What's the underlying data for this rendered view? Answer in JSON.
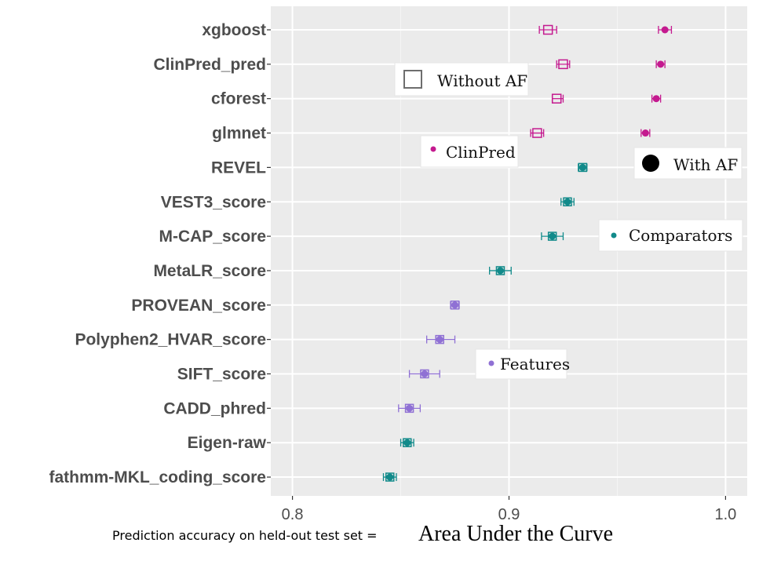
{
  "chart_data": {
    "type": "scatter",
    "orientation": "horizontal",
    "xlim": [
      0.79,
      1.01
    ],
    "xticks": [
      0.8,
      0.9,
      1.0
    ],
    "xtick_labels": [
      "0.8",
      "0.9",
      "1.0"
    ],
    "xlabel_prefix": "Prediction accuracy on held-out test set =",
    "xlabel_main": "Area Under the Curve",
    "grid": true,
    "colors": {
      "clinpred": "#c41a8f",
      "comparators": "#118a8a",
      "features": "#8f70d4"
    },
    "categories": [
      "xgboost",
      "ClinPred_pred",
      "cforest",
      "glmnet",
      "REVEL",
      "VEST3_score",
      "M-CAP_score",
      "MetaLR_score",
      "PROVEAN_score",
      "Polyphen2_HVAR_score",
      "SIFT_score",
      "CADD_phred",
      "Eigen-raw",
      "fathmm-MKL_coding_score"
    ],
    "series": [
      {
        "name": "ClinPred",
        "color_key": "clinpred",
        "points": [
          {
            "category": "xgboost",
            "with_af": 0.972,
            "with_af_err": [
              0.969,
              0.975
            ],
            "without_af": 0.918,
            "without_af_err": [
              0.914,
              0.922
            ]
          },
          {
            "category": "ClinPred_pred",
            "with_af": 0.97,
            "with_af_err": [
              0.968,
              0.972
            ],
            "without_af": 0.925,
            "without_af_err": [
              0.922,
              0.928
            ]
          },
          {
            "category": "cforest",
            "with_af": 0.968,
            "with_af_err": [
              0.966,
              0.97
            ],
            "without_af": 0.922,
            "without_af_err": [
              0.92,
              0.925
            ]
          },
          {
            "category": "glmnet",
            "with_af": 0.963,
            "with_af_err": [
              0.961,
              0.965
            ],
            "without_af": 0.913,
            "without_af_err": [
              0.91,
              0.916
            ]
          }
        ]
      },
      {
        "name": "Comparators",
        "color_key": "comparators",
        "points": [
          {
            "category": "REVEL",
            "value": 0.934,
            "err": [
              0.932,
              0.936
            ]
          },
          {
            "category": "VEST3_score",
            "value": 0.927,
            "err": [
              0.924,
              0.93
            ]
          },
          {
            "category": "M-CAP_score",
            "value": 0.92,
            "err": [
              0.915,
              0.925
            ]
          },
          {
            "category": "MetaLR_score",
            "value": 0.896,
            "err": [
              0.891,
              0.901
            ]
          },
          {
            "category": "Eigen-raw",
            "value": 0.853,
            "err": [
              0.85,
              0.856
            ]
          },
          {
            "category": "fathmm-MKL_coding_score",
            "value": 0.845,
            "err": [
              0.842,
              0.848
            ]
          }
        ]
      },
      {
        "name": "Features",
        "color_key": "features",
        "points": [
          {
            "category": "PROVEAN_score",
            "value": 0.875,
            "err": [
              0.873,
              0.877
            ]
          },
          {
            "category": "Polyphen2_HVAR_score",
            "value": 0.868,
            "err": [
              0.862,
              0.875
            ]
          },
          {
            "category": "SIFT_score",
            "value": 0.861,
            "err": [
              0.854,
              0.868
            ]
          },
          {
            "category": "CADD_phred",
            "value": 0.854,
            "err": [
              0.849,
              0.859
            ]
          }
        ]
      }
    ],
    "legend": {
      "without_af": "Without AF",
      "with_af": "With AF",
      "clinpred": "ClinPred",
      "comparators": "Comparators",
      "features": "Features"
    }
  }
}
